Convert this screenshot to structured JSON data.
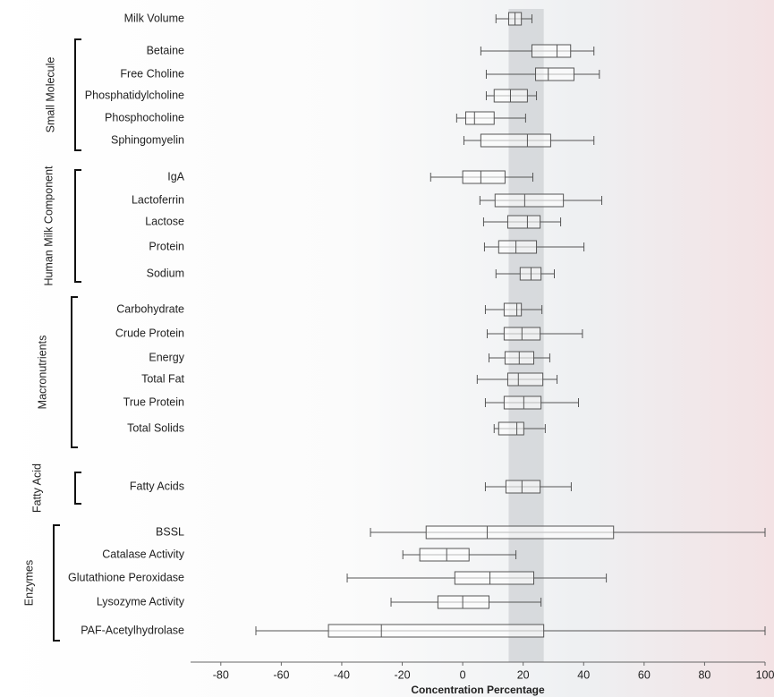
{
  "chart_data": {
    "type": "box",
    "x_label": "Concentration Percentage",
    "xlim": [
      -90,
      100
    ],
    "xticks": [
      -80,
      -60,
      -40,
      -20,
      0,
      20,
      40,
      60,
      80,
      100
    ],
    "highlight_range": [
      15.2,
      26.8
    ],
    "box_color": "#555555",
    "groups": [
      {
        "rows": [
          {
            "category": "Milk Volume",
            "min": 11.0,
            "q1": 15.2,
            "median": 17.3,
            "q3": 19.4,
            "max": 22.9
          }
        ]
      },
      {
        "name": "Small Molecule",
        "rows": [
          {
            "category": "Betaine",
            "min": 6.0,
            "q1": 22.9,
            "median": 31.2,
            "q3": 35.7,
            "max": 43.4
          },
          {
            "category": "Free Choline",
            "min": 7.8,
            "q1": 24.1,
            "median": 28.3,
            "q3": 36.8,
            "max": 45.2
          },
          {
            "category": "Phosphatidylcholine",
            "min": 7.8,
            "q1": 10.4,
            "median": 15.8,
            "q3": 21.4,
            "max": 24.4
          },
          {
            "category": "Phosphocholine",
            "min": -2.0,
            "q1": 1.0,
            "median": 3.9,
            "q3": 10.4,
            "max": 20.8
          },
          {
            "category": "Sphingomyelin",
            "min": 0.4,
            "q1": 6.0,
            "median": 21.4,
            "q3": 29.1,
            "max": 43.4
          }
        ]
      },
      {
        "name": "Human Milk Component",
        "rows": [
          {
            "category": "IgA",
            "min": -10.6,
            "q1": 0,
            "median": 6.0,
            "q3": 14.0,
            "max": 23.2
          },
          {
            "category": "Lactoferrin",
            "min": 5.7,
            "q1": 10.7,
            "median": 20.5,
            "q3": 33.3,
            "max": 46.0
          },
          {
            "category": "Lactose",
            "min": 6.9,
            "q1": 14.9,
            "median": 21.4,
            "q3": 25.6,
            "max": 32.4
          },
          {
            "category": "Protein",
            "min": 7.2,
            "q1": 11.9,
            "median": 17.6,
            "q3": 24.4,
            "max": 40.1
          },
          {
            "category": "Sodium",
            "min": 11.0,
            "q1": 19.0,
            "median": 22.6,
            "q3": 25.9,
            "max": 30.3
          }
        ]
      },
      {
        "name": "Macronutrients",
        "rows": [
          {
            "category": "Carbohydrate",
            "min": 7.5,
            "q1": 13.7,
            "median": 17.9,
            "q3": 19.4,
            "max": 26.2
          },
          {
            "category": "Crude Protein",
            "min": 8.1,
            "q1": 13.7,
            "median": 19.6,
            "q3": 25.6,
            "max": 39.6
          },
          {
            "category": "Energy",
            "min": 8.7,
            "q1": 14.0,
            "median": 18.7,
            "q3": 23.5,
            "max": 28.8
          },
          {
            "category": "Total Fat",
            "min": 4.8,
            "q1": 14.9,
            "median": 18.4,
            "q3": 26.5,
            "max": 31.2
          },
          {
            "category": "True Protein",
            "min": 7.5,
            "q1": 13.7,
            "median": 20.2,
            "q3": 25.9,
            "max": 38.3
          },
          {
            "category": "Total Solids",
            "min": 10.4,
            "q1": 11.9,
            "median": 17.9,
            "q3": 20.2,
            "max": 27.3
          }
        ]
      },
      {
        "name": "Fatty Acid",
        "rows": [
          {
            "category": "Fatty Acids",
            "min": 7.5,
            "q1": 14.3,
            "median": 19.6,
            "q3": 25.6,
            "max": 35.9
          }
        ]
      },
      {
        "name": "Enzymes",
        "rows": [
          {
            "category": "BSSL",
            "min": -30.5,
            "q1": -12.1,
            "median": 8.1,
            "q3": 49.9,
            "max": 100
          },
          {
            "category": "Catalase Activity",
            "min": -19.8,
            "q1": -14.2,
            "median": -5.3,
            "q3": 2.1,
            "max": 17.6
          },
          {
            "category": "Glutathione Peroxidase",
            "min": -38.2,
            "q1": -2.6,
            "median": 9.0,
            "q3": 23.5,
            "max": 47.5
          },
          {
            "category": "Lysozyme Activity",
            "min": -23.7,
            "q1": -8.2,
            "median": 0,
            "q3": 8.7,
            "max": 25.9
          },
          {
            "category": "PAF-Acetylhydrolase",
            "min": -68.4,
            "q1": -44.4,
            "median": -26.9,
            "q3": 26.8,
            "max": 100
          }
        ]
      }
    ]
  }
}
